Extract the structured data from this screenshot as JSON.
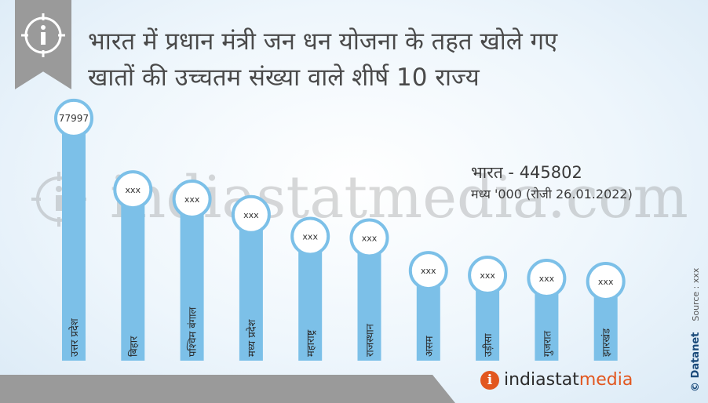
{
  "header": {
    "title_line1": "भारत में प्रधान मंत्री जन धन योजना के तहत खोले गए",
    "title_line2": "खातों की उच्चतम संख्या वाले शीर्ष 10 राज्य",
    "info_icon": "info-icon"
  },
  "total": {
    "line1": "भारत - 445802",
    "line2": "मध्य '000 (रोजी 26.01.2022)"
  },
  "watermark": {
    "text": "indiastatmedia.com"
  },
  "credit": {
    "brand": "© Datanet",
    "source": "Source : xxx"
  },
  "footer": {
    "logo_part1": "indiastat",
    "logo_part2": "media"
  },
  "colors": {
    "bar": "#7cc0e8",
    "bubble_border": "#7cc0e8",
    "bubble_fill": "#ffffff",
    "badge": "#9a9a9a",
    "logo_accent": "#e2571f"
  },
  "chart_data": {
    "type": "bar",
    "categories": [
      "उत्तर प्रदेश",
      "बिहार",
      "पश्चिम बंगाल",
      "मध्य प्रदेश",
      "महाराष्ट्र",
      "राजस्थान",
      "असम",
      "उड़ीसा",
      "गुजरात",
      "झारखंड"
    ],
    "value_labels": [
      "77997",
      "xxx",
      "xxx",
      "xxx",
      "xxx",
      "xxx",
      "xxx",
      "xxx",
      "xxx",
      "xxx"
    ],
    "values": [
      77997,
      55000,
      52000,
      47000,
      40000,
      39500,
      29000,
      27500,
      26500,
      25500
    ],
    "ylim": [
      0,
      80000
    ]
  }
}
